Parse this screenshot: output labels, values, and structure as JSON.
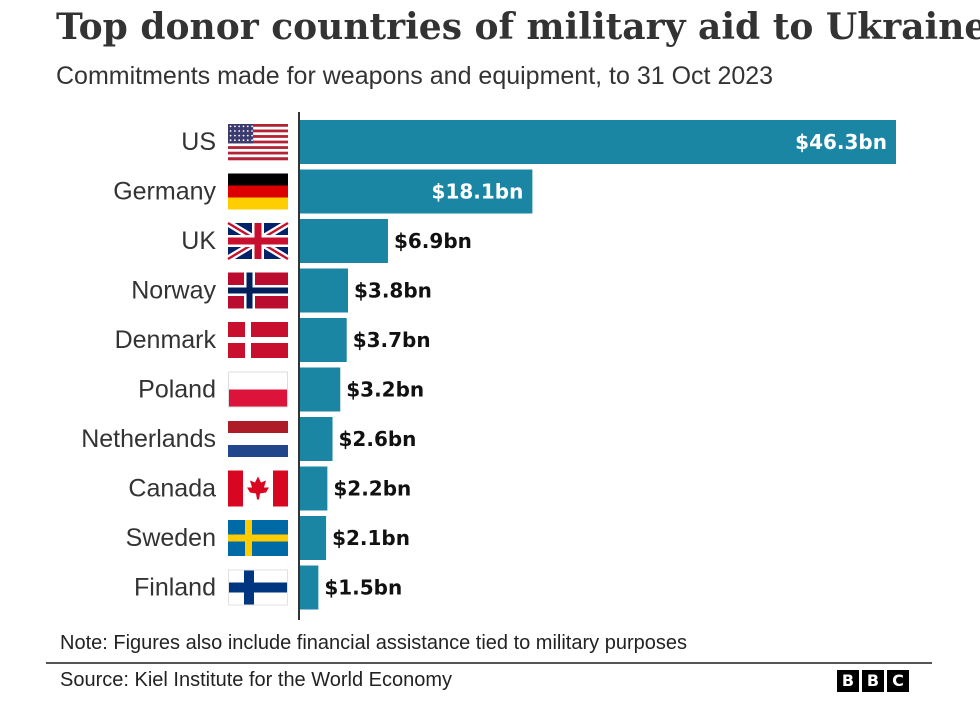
{
  "header": {
    "title": "Top donor countries of military aid to Ukraine",
    "subtitle": "Commitments made for weapons and equipment, to 31 Oct 2023"
  },
  "footer": {
    "note": "Note: Figures also include financial assistance tied to military purposes",
    "source": "Source: Kiel Institute for the World Economy",
    "logo_letters": [
      "B",
      "B",
      "C"
    ]
  },
  "colors": {
    "bar": "#1b86a4",
    "axis": "#333333",
    "inside_label": "#ffffff",
    "outside_label": "#111111"
  },
  "chart_data": {
    "type": "bar",
    "orientation": "horizontal",
    "title": "Top donor countries of military aid to Ukraine",
    "subtitle": "Commitments made for weapons and equipment, to 31 Oct 2023",
    "categories": [
      "US",
      "Germany",
      "UK",
      "Norway",
      "Denmark",
      "Poland",
      "Netherlands",
      "Canada",
      "Sweden",
      "Finland"
    ],
    "values": [
      46.3,
      18.1,
      6.9,
      3.8,
      3.7,
      3.2,
      2.6,
      2.2,
      2.1,
      1.5
    ],
    "value_labels": [
      "$46.3bn",
      "$18.1bn",
      "$6.9bn",
      "$3.8bn",
      "$3.7bn",
      "$3.2bn",
      "$2.6bn",
      "$2.2bn",
      "$2.1bn",
      "$1.5bn"
    ],
    "flags": [
      "us",
      "germany",
      "uk",
      "norway",
      "denmark",
      "poland",
      "netherlands",
      "canada",
      "sweden",
      "finland"
    ],
    "xlim": [
      0,
      46.3
    ],
    "grid": false,
    "legend": "none"
  }
}
